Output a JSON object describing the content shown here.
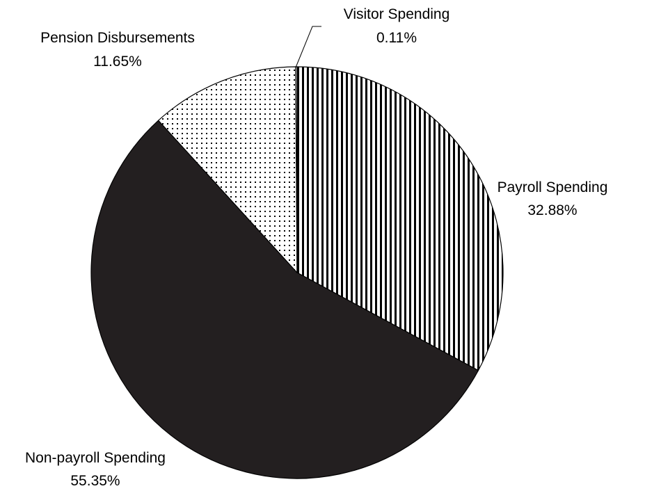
{
  "chart_data": {
    "type": "pie",
    "title": "",
    "start_angle_deg": 0,
    "direction": "clockwise",
    "slices": [
      {
        "label": "Payroll Spending",
        "value": 32.88,
        "display": "32.88%",
        "fill": "vertical-stripes",
        "colors": [
          "#000000",
          "#ffffff"
        ]
      },
      {
        "label": "Non-payroll Spending",
        "value": 55.35,
        "display": "55.35%",
        "fill": "solid",
        "colors": [
          "#231f20"
        ]
      },
      {
        "label": "Pension Disbursements",
        "value": 11.65,
        "display": "11.65%",
        "fill": "dots",
        "colors": [
          "#000000",
          "#ffffff"
        ]
      },
      {
        "label": "Visitor Spending",
        "value": 0.11,
        "display": "0.11%",
        "fill": "solid",
        "colors": [
          "#ffffff"
        ]
      }
    ],
    "label_placement": {
      "Payroll Spending": "right",
      "Non-payroll Spending": "bottom-left",
      "Pension Disbursements": "top-left",
      "Visitor Spending": "top, with leader line"
    }
  }
}
